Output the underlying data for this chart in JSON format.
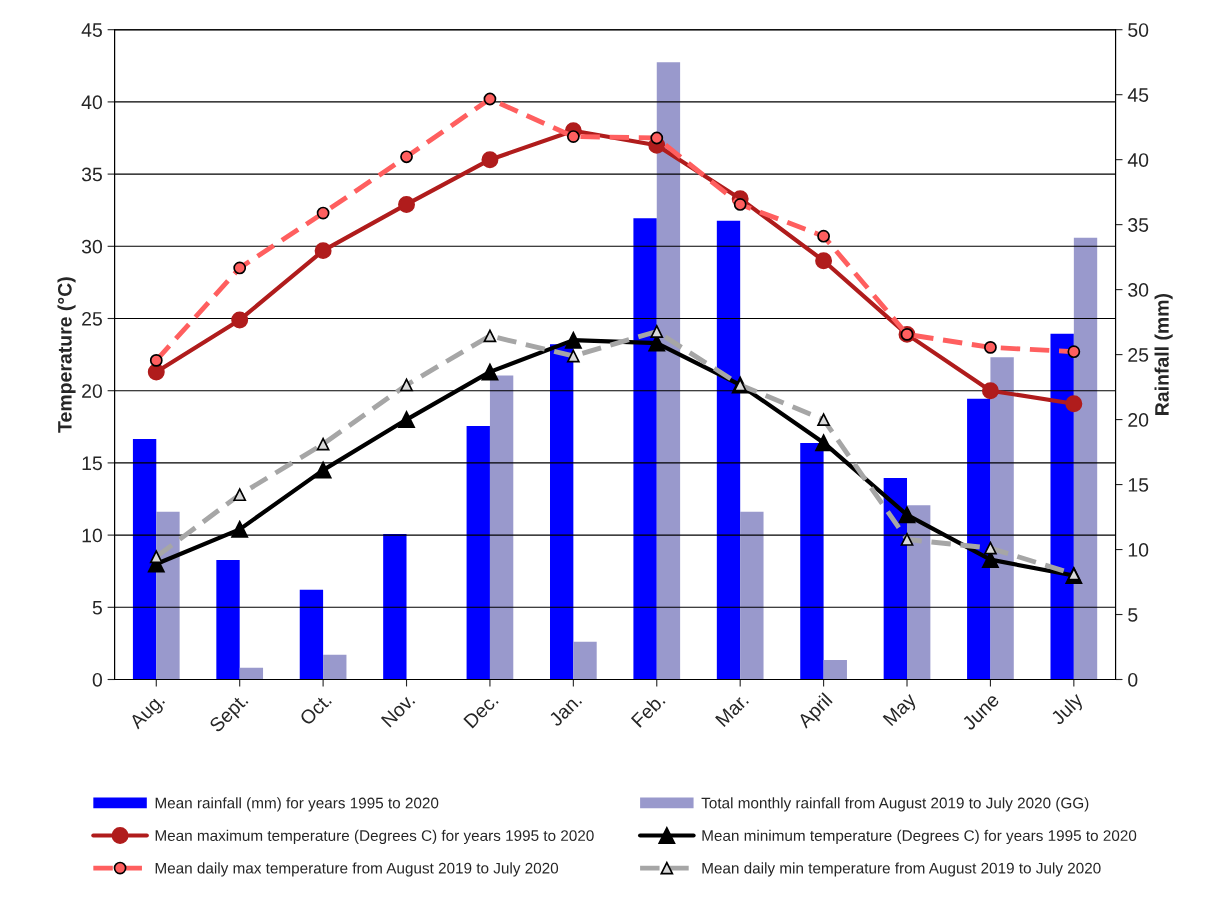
{
  "chart_data": {
    "type": "bar",
    "ylabel": "Temperature (°C)",
    "y2label": "Rainfall (mm)",
    "categories": [
      "Aug.",
      "Sept.",
      "Oct.",
      "Nov.",
      "Dec.",
      "Jan.",
      "Feb.",
      "Mar.",
      "April",
      "May",
      "June",
      "July"
    ],
    "series": [
      {
        "name": "Mean rainfall (mm) for years 1995 to 2020",
        "type": "bar",
        "axis": "y2",
        "color": "#0000ff",
        "values": [
          18.5,
          9.2,
          6.9,
          11.2,
          19.5,
          25.8,
          35.5,
          35.3,
          18.2,
          15.5,
          21.6,
          26.6
        ]
      },
      {
        "name": "Mean maximum temperature (Degrees C) for years 1995 to 2020",
        "type": "line",
        "axis": "y",
        "color": "#b01c1c",
        "marker": "circle",
        "line_style": "solid",
        "values": [
          21.3,
          24.9,
          29.7,
          32.9,
          36.0,
          38.0,
          37.0,
          33.3,
          29.0,
          23.9,
          20.0,
          19.1
        ]
      },
      {
        "name": "Mean daily max temperature from August 2019 to July 2020",
        "type": "line",
        "axis": "y",
        "color": "#ff5f5f",
        "marker": "circle",
        "line_style": "dashed",
        "values": [
          22.1,
          28.5,
          32.3,
          36.2,
          40.2,
          37.6,
          37.5,
          32.9,
          30.7,
          23.9,
          23.0,
          22.7
        ]
      },
      {
        "name": "Total monthly rainfall from August 2019 to July 2020 (GG)",
        "type": "bar",
        "axis": "y2",
        "color": "#9999cc",
        "values": [
          12.9,
          0.9,
          1.9,
          0,
          23.4,
          2.9,
          47.5,
          12.9,
          1.5,
          13.4,
          24.8,
          34.0
        ]
      },
      {
        "name": "Mean minimum temperature (Degrees C) for years 1995 to 2020",
        "type": "line",
        "axis": "y",
        "color": "#000000",
        "marker": "triangle",
        "line_style": "solid",
        "values": [
          8.0,
          10.4,
          14.5,
          18.0,
          21.3,
          23.5,
          23.3,
          20.4,
          16.4,
          11.4,
          8.3,
          7.2
        ]
      },
      {
        "name": "Mean daily min temperature from August 2019 to July 2020",
        "type": "line",
        "axis": "y",
        "color": "#a6a6a6",
        "marker": "triangle",
        "line_style": "dashed",
        "values": [
          8.5,
          12.8,
          16.3,
          20.4,
          23.8,
          22.4,
          24.1,
          20.4,
          18.0,
          9.7,
          9.1,
          7.3
        ]
      }
    ],
    "ylim": [
      0,
      45
    ],
    "yticks": [
      0,
      5,
      10,
      15,
      20,
      25,
      30,
      35,
      40,
      45
    ],
    "y2lim": [
      0,
      50
    ],
    "y2ticks": [
      0,
      5,
      10,
      15,
      20,
      25,
      30,
      35,
      40,
      45,
      50
    ],
    "grid": "y",
    "legend": "bottom"
  }
}
